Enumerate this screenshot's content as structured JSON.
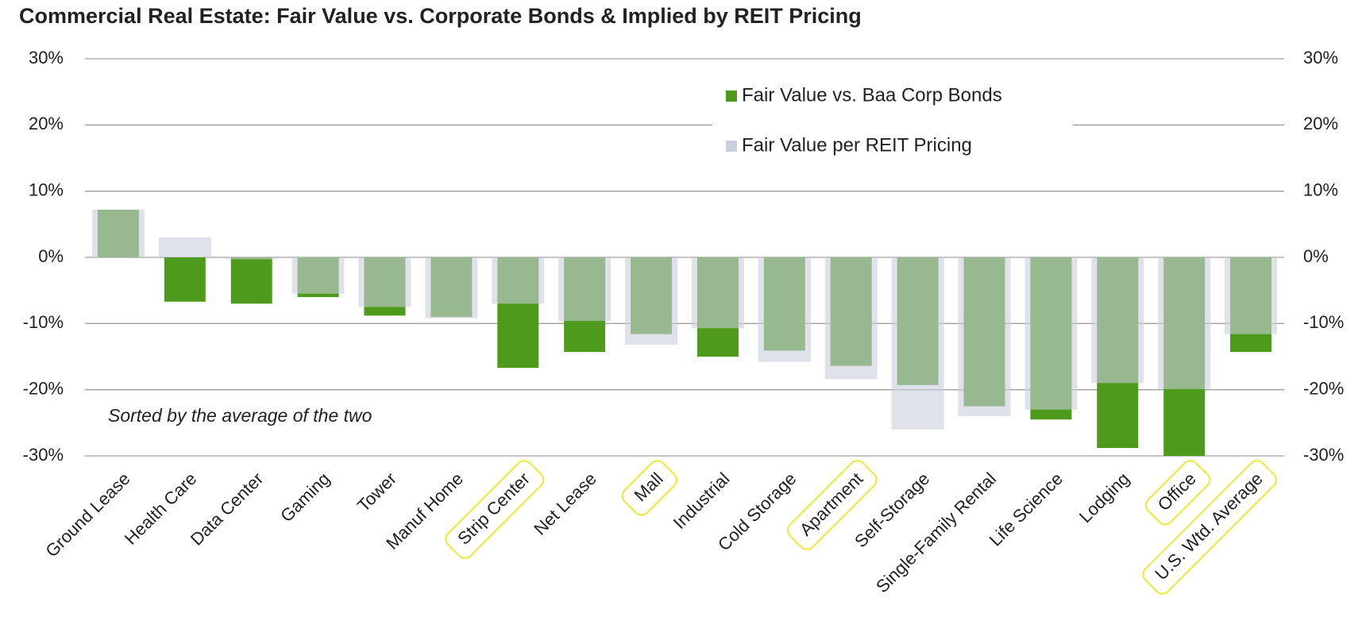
{
  "chart_data": {
    "type": "bar",
    "title": "Commercial Real Estate: Fair Value vs. Corporate Bonds & Implied by REIT Pricing",
    "annotation": "Sorted by the average of the two",
    "categories": [
      "Ground Lease",
      "Health Care",
      "Data Center",
      "Gaming",
      "Tower",
      "Manuf Home",
      "Strip Center",
      "Net Lease",
      "Mall",
      "Industrial",
      "Cold Storage",
      "Apartment",
      "Self-Storage",
      "Single-Family Rental",
      "Life Science",
      "Lodging",
      "Office",
      "U.S. Wtd. Average"
    ],
    "series": [
      {
        "name": "Fair Value vs. Baa Corp Bonds",
        "color": "#4e9a1c",
        "values": [
          7.2,
          -6.7,
          -7.0,
          -6.0,
          -8.8,
          -9.0,
          -16.7,
          -14.3,
          -11.6,
          -15.0,
          -14.1,
          -16.4,
          -19.3,
          -22.5,
          -24.5,
          -28.8,
          -30.0,
          -14.3
        ]
      },
      {
        "name": "Fair Value per REIT Pricing",
        "color": "#c9cfdd",
        "values": [
          7.2,
          3.0,
          -0.3,
          -5.5,
          -7.5,
          -9.2,
          -7.0,
          -9.6,
          -13.2,
          -10.7,
          -15.8,
          -18.4,
          -26.0,
          -24.0,
          -23.0,
          -19.0,
          -19.9,
          -11.6
        ]
      }
    ],
    "ylim": [
      -30,
      30
    ],
    "yticks": [
      {
        "value": -30,
        "label": "-30%"
      },
      {
        "value": -20,
        "label": "-20%"
      },
      {
        "value": -10,
        "label": "-10%"
      },
      {
        "value": 0,
        "label": "0%"
      },
      {
        "value": 10,
        "label": "10%"
      },
      {
        "value": 20,
        "label": "20%"
      },
      {
        "value": 30,
        "label": "30%"
      }
    ],
    "y2ticks": [
      {
        "value": -30,
        "label": "-30%"
      },
      {
        "value": -20,
        "label": "-20%"
      },
      {
        "value": -10,
        "label": "-10%"
      },
      {
        "value": 0,
        "label": "0%"
      },
      {
        "value": 10,
        "label": "10%"
      },
      {
        "value": 20,
        "label": "20%"
      },
      {
        "value": 30,
        "label": "30%"
      }
    ],
    "grid": true,
    "highlighted": [
      6,
      8,
      11,
      16,
      17
    ]
  }
}
